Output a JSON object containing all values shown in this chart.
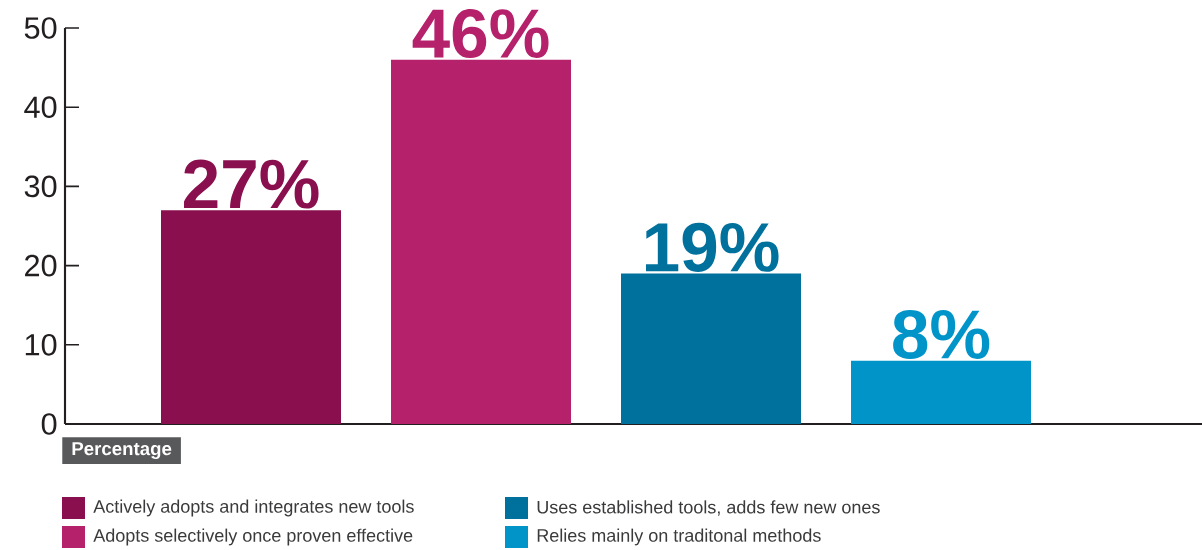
{
  "chart_data": {
    "type": "bar",
    "xlabel": "Percentage",
    "categories": [
      null,
      null,
      null,
      null
    ],
    "series": [
      {
        "name": "Actively adopts and integrates new tools",
        "color": "#8a0f4e",
        "values": [
          27,
          null,
          null,
          null
        ],
        "value_labels": [
          "27%",
          null,
          null,
          null
        ]
      },
      {
        "name": "Adopts selectively once proven effective",
        "color": "#b5216b",
        "values": [
          null,
          46,
          null,
          null
        ],
        "value_labels": [
          null,
          "46%",
          null,
          null
        ]
      },
      {
        "name": "Uses established tools, adds few new ones",
        "color": "#00709c",
        "values": [
          null,
          null,
          19,
          null
        ],
        "value_labels": [
          null,
          null,
          "19%",
          null
        ]
      },
      {
        "name": "Relies mainly on traditonal methods",
        "color": "#0094c9",
        "values": [
          null,
          null,
          null,
          8
        ],
        "value_labels": [
          null,
          null,
          null,
          "8%"
        ]
      }
    ],
    "ylim": [
      0,
      50
    ],
    "yticks": [
      0,
      10,
      20,
      30,
      40,
      50
    ],
    "grid": false,
    "legend": "bottom"
  }
}
